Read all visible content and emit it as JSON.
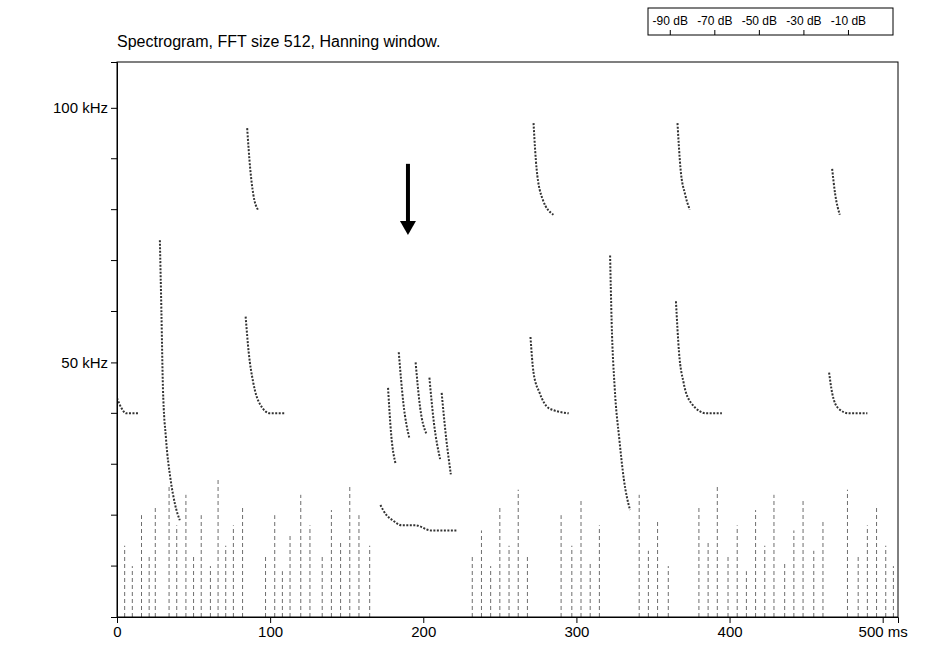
{
  "chart_data": {
    "type": "line",
    "title": "Spectrogram, FFT size 512, Hanning window.",
    "xlim": [
      0,
      510
    ],
    "xticks": [
      0,
      100,
      200,
      300,
      400,
      {
        "value": 500,
        "label": "500 ms"
      }
    ],
    "ylim": [
      0,
      109
    ],
    "yticks": [
      {
        "value": 50,
        "label": "50 kHz"
      },
      {
        "value": 100,
        "label": "100 kHz"
      }
    ],
    "y_minor_ticks": [
      10,
      20,
      30,
      40,
      60,
      70,
      80,
      90
    ],
    "colorbar": {
      "range": [
        -100,
        10
      ],
      "ticks": [
        {
          "value": -90,
          "label": "-90 dB"
        },
        {
          "value": -70,
          "label": "-70 dB"
        },
        {
          "value": -50,
          "label": "-50 dB"
        },
        {
          "value": -30,
          "label": "-30 dB"
        },
        {
          "value": -10,
          "label": "-10 dB"
        }
      ]
    },
    "arrows": [
      {
        "x": 190,
        "y_start": 89,
        "y_end": 75
      }
    ],
    "series": [
      {
        "type": "stem",
        "line_style": "dashed",
        "color": "#6e6e6e",
        "x": [
          5,
          10,
          16,
          21,
          25,
          34,
          39,
          45,
          50,
          55,
          61,
          66,
          71,
          76,
          82,
          97,
          103,
          108,
          113,
          120,
          126,
          134,
          140,
          146,
          152,
          158,
          165,
          232,
          238,
          244,
          250,
          256,
          262,
          268,
          290,
          297,
          303,
          309,
          315,
          341,
          347,
          353,
          360,
          380,
          386,
          392,
          399,
          405,
          411,
          417,
          423,
          429,
          436,
          442,
          448,
          455,
          461,
          477,
          484,
          490,
          496,
          502,
          507
        ],
        "values": [
          14,
          10,
          20,
          12,
          22,
          26,
          18,
          24,
          12,
          20,
          10,
          27,
          14,
          18,
          22,
          12,
          20,
          9,
          16,
          24,
          18,
          12,
          21,
          15,
          26,
          20,
          14,
          12,
          17,
          10,
          22,
          14,
          25,
          12,
          20,
          14,
          23,
          11,
          18,
          24,
          13,
          19,
          10,
          22,
          15,
          26,
          12,
          18,
          9,
          21,
          14,
          24,
          11,
          17,
          23,
          13,
          19,
          25,
          12,
          18,
          22,
          14,
          10
        ]
      },
      {
        "type": "line",
        "line_style": "dotted",
        "color": "#333333",
        "x": [
          0,
          3,
          6,
          10,
          14
        ],
        "values": [
          43,
          41,
          40,
          40,
          40
        ]
      },
      {
        "type": "line",
        "line_style": "dotted",
        "color": "#333333",
        "x": [
          28,
          29,
          30,
          32,
          35,
          38,
          41
        ],
        "values": [
          74,
          60,
          45,
          35,
          27,
          22,
          19
        ]
      },
      {
        "type": "line",
        "line_style": "dotted",
        "color": "#333333",
        "x": [
          85,
          87,
          89,
          92
        ],
        "values": [
          96,
          88,
          83,
          80
        ]
      },
      {
        "type": "line",
        "line_style": "dotted",
        "color": "#333333",
        "x": [
          84,
          86,
          89,
          93,
          100,
          110
        ],
        "values": [
          59,
          52,
          46,
          42,
          40,
          40
        ]
      },
      {
        "type": "line",
        "line_style": "dotted",
        "color": "#333333",
        "x": [
          172,
          176,
          180,
          186,
          195,
          205,
          215,
          222
        ],
        "values": [
          22,
          20,
          19,
          18,
          18,
          17,
          17,
          17
        ]
      },
      {
        "type": "line",
        "line_style": "dotted",
        "color": "#333333",
        "x": [
          177,
          179,
          182
        ],
        "values": [
          45,
          36,
          30
        ]
      },
      {
        "type": "line",
        "line_style": "dotted",
        "color": "#333333",
        "x": [
          184,
          187,
          191
        ],
        "values": [
          52,
          42,
          35
        ]
      },
      {
        "type": "line",
        "line_style": "dotted",
        "color": "#333333",
        "x": [
          195,
          198,
          202
        ],
        "values": [
          50,
          41,
          36
        ]
      },
      {
        "type": "line",
        "line_style": "dotted",
        "color": "#333333",
        "x": [
          204,
          207,
          211
        ],
        "values": [
          47,
          38,
          31
        ]
      },
      {
        "type": "line",
        "line_style": "dotted",
        "color": "#333333",
        "x": [
          212,
          215,
          218
        ],
        "values": [
          44,
          35,
          28
        ]
      },
      {
        "type": "line",
        "line_style": "dotted",
        "color": "#333333",
        "x": [
          272,
          274,
          278,
          285
        ],
        "values": [
          97,
          88,
          82,
          79
        ]
      },
      {
        "type": "line",
        "line_style": "dotted",
        "color": "#333333",
        "x": [
          270,
          272,
          276,
          282,
          295
        ],
        "values": [
          55,
          48,
          44,
          41,
          40
        ]
      },
      {
        "type": "line",
        "line_style": "dotted",
        "color": "#333333",
        "x": [
          322,
          323,
          325,
          328,
          331,
          335
        ],
        "values": [
          71,
          58,
          45,
          35,
          27,
          21
        ]
      },
      {
        "type": "line",
        "line_style": "dotted",
        "color": "#333333",
        "x": [
          366,
          368,
          371,
          374
        ],
        "values": [
          97,
          88,
          83,
          80
        ]
      },
      {
        "type": "line",
        "line_style": "dotted",
        "color": "#333333",
        "x": [
          365,
          367,
          370,
          375,
          385,
          395
        ],
        "values": [
          62,
          52,
          46,
          42,
          40,
          40
        ]
      },
      {
        "type": "line",
        "line_style": "dotted",
        "color": "#333333",
        "x": [
          467,
          469,
          472
        ],
        "values": [
          88,
          83,
          79
        ]
      },
      {
        "type": "line",
        "line_style": "dotted",
        "color": "#333333",
        "x": [
          465,
          467,
          471,
          478,
          490
        ],
        "values": [
          48,
          44,
          41,
          40,
          40
        ]
      }
    ]
  }
}
